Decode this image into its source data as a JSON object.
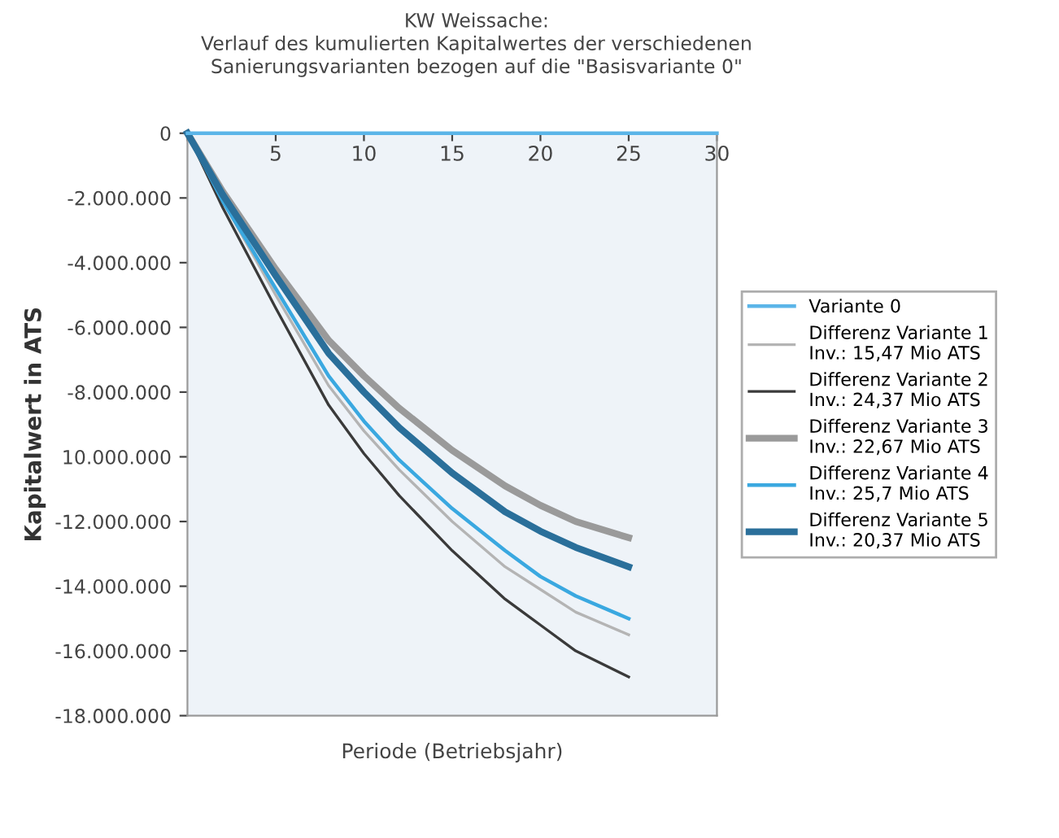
{
  "chart_data": {
    "type": "line",
    "title": "KW Weissache:\nVerlauf des kumulierten Kapitalwertes der verschiedenen\nSanierungsvarianten bezogen auf die \"Basisvariante 0\"",
    "xlabel": "Periode (Betriebsjahr)",
    "ylabel": "Kapitalwert in ATS",
    "xlim": [
      0,
      30
    ],
    "ylim": [
      -18000000,
      0
    ],
    "xticks": [
      {
        "value": 0,
        "label": null
      },
      5,
      10,
      15,
      20,
      25,
      30
    ],
    "yticks": [
      0,
      {
        "value": -2000000,
        "label": "-2.000.000"
      },
      {
        "value": -4000000,
        "label": "-4.000.000"
      },
      {
        "value": -6000000,
        "label": "-6.000.000"
      },
      {
        "value": -8000000,
        "label": "-8.000.000"
      },
      {
        "value": -10000000,
        "label": "10.000.000"
      },
      {
        "value": -12000000,
        "label": "-12.000.000"
      },
      {
        "value": -14000000,
        "label": "-14.000.000"
      },
      {
        "value": -16000000,
        "label": "-16.000.000"
      },
      {
        "value": -18000000,
        "label": "-18.000.000"
      }
    ],
    "grid": false,
    "legend": "right",
    "marker": "none",
    "line_style": "solid",
    "series": [
      {
        "name": "Variante 0",
        "color": "#5bb5e8",
        "x": [
          0,
          5,
          10,
          15,
          20,
          25,
          30
        ],
        "values": [
          0,
          0,
          0,
          0,
          0,
          0,
          0
        ]
      },
      {
        "name": "Differenz Variante 1\nInv.: 15,47 Mio ATS",
        "color": "#b4b4b4",
        "x": [
          0,
          2,
          5,
          8,
          10,
          12,
          15,
          18,
          20,
          22,
          25
        ],
        "values": [
          0,
          -2100000,
          -5000000,
          -7800000,
          -9200000,
          -10400000,
          -12000000,
          -13400000,
          -14100000,
          -14800000,
          -15500000
        ]
      },
      {
        "name": "Differenz Variante 2\nInv.: 24,37 Mio ATS",
        "color": "#3a3a3a",
        "x": [
          0,
          2,
          5,
          8,
          10,
          12,
          15,
          18,
          20,
          22,
          25
        ],
        "values": [
          0,
          -2300000,
          -5400000,
          -8400000,
          -9900000,
          -11200000,
          -12900000,
          -14400000,
          -15200000,
          -16000000,
          -16800000
        ]
      },
      {
        "name": "Differenz Variante 3\nInv.: 22,67 Mio ATS",
        "color": "#9a9a9a",
        "x": [
          0,
          2,
          5,
          8,
          10,
          12,
          15,
          18,
          20,
          22,
          25
        ],
        "values": [
          0,
          -1800000,
          -4200000,
          -6400000,
          -7500000,
          -8500000,
          -9800000,
          -10900000,
          -11500000,
          -12000000,
          -12500000
        ]
      },
      {
        "name": "Differenz Variante 4\nInv.: 25,7 Mio ATS",
        "color": "#3aa8e0",
        "x": [
          0,
          2,
          5,
          8,
          10,
          12,
          15,
          18,
          20,
          22,
          25
        ],
        "values": [
          0,
          -2100000,
          -4800000,
          -7500000,
          -8900000,
          -10100000,
          -11600000,
          -12900000,
          -13700000,
          -14300000,
          -15000000
        ]
      },
      {
        "name": "Differenz Variante 5\nInv.: 20,37 Mio ATS",
        "color": "#2a6f9a",
        "x": [
          0,
          2,
          5,
          8,
          10,
          12,
          15,
          18,
          20,
          22,
          25
        ],
        "values": [
          0,
          -1900000,
          -4400000,
          -6800000,
          -8000000,
          -9100000,
          -10500000,
          -11700000,
          -12300000,
          -12800000,
          -13400000
        ]
      }
    ]
  }
}
